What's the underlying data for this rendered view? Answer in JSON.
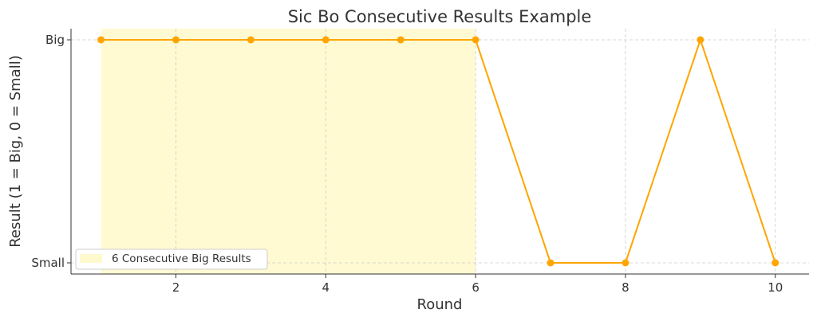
{
  "chart_data": {
    "type": "line",
    "title": "Sic Bo Consecutive Results Example",
    "xlabel": "Round",
    "ylabel": "Result (1 = Big, 0 = Small)",
    "x": [
      1,
      2,
      3,
      4,
      5,
      6,
      7,
      8,
      9,
      10
    ],
    "series": [
      {
        "values": [
          1,
          1,
          1,
          1,
          1,
          1,
          0,
          0,
          1,
          0
        ],
        "color": "#FFA500"
      }
    ],
    "xlim": [
      0.6,
      10.45
    ],
    "ylim": [
      -0.05,
      1.05
    ],
    "x_ticks": [
      2,
      4,
      6,
      8,
      10
    ],
    "x_tick_labels": [
      "2",
      "4",
      "6",
      "8",
      "10"
    ],
    "y_ticks": [
      0,
      1
    ],
    "y_tick_labels": [
      "Small",
      "Big"
    ],
    "grid": true,
    "highlight": {
      "x_start": 1,
      "x_end": 6,
      "label": "6 Consecutive Big Results",
      "color": "#FFFACD"
    },
    "legend": {
      "position": "lower-left",
      "entries": [
        "6 Consecutive Big Results"
      ]
    }
  }
}
